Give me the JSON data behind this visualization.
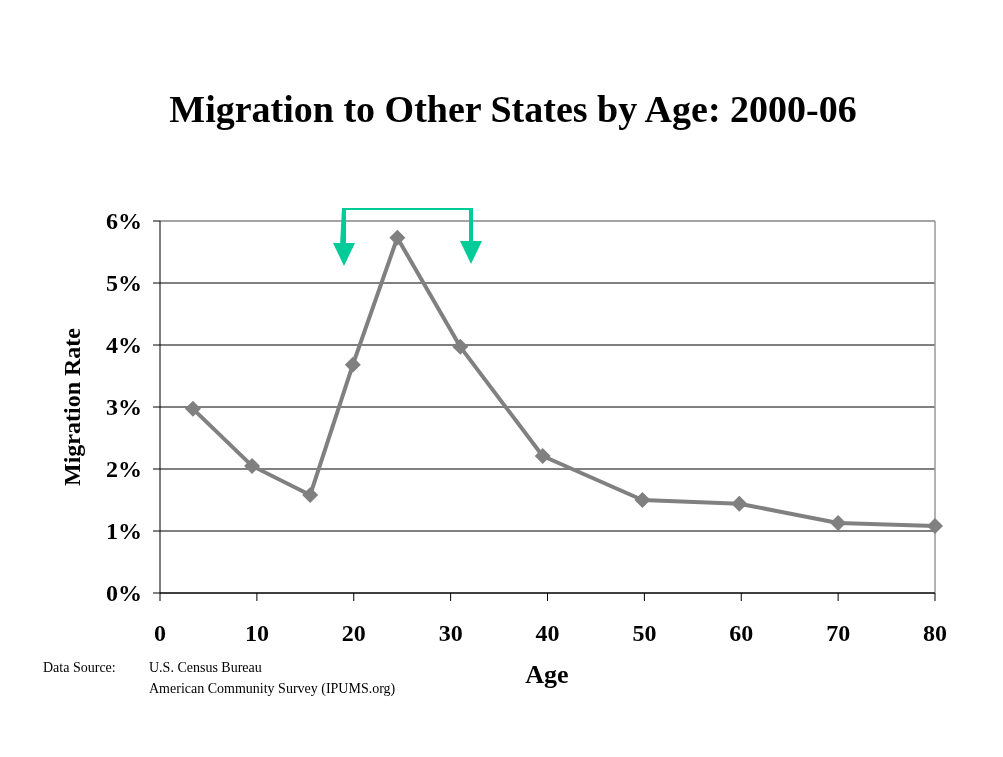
{
  "chart_data": {
    "type": "line",
    "title": "Migration to Other States by Age: 2000-06",
    "xlabel": "Age",
    "ylabel": "Migration Rate",
    "annotations": [
      "Data Source:",
      "U.S. Census Bureau",
      "American Community Survey (IPUMS.org)"
    ],
    "series": [
      {
        "color": "#808080",
        "x": [
          3.4,
          9.5,
          15.5,
          19.9,
          24.5,
          31,
          39.5,
          49.8,
          59.8,
          70,
          80
        ],
        "values": [
          2.97,
          2.05,
          1.58,
          3.68,
          5.73,
          3.97,
          2.21,
          1.5,
          1.44,
          1.13,
          1.08
        ]
      }
    ],
    "xlim": [
      0,
      80
    ],
    "xticks": [
      0,
      10,
      20,
      30,
      40,
      50,
      60,
      70,
      80
    ],
    "ylim": [
      0,
      6
    ],
    "yticks": [
      {
        "value": 0,
        "label": "0%"
      },
      {
        "value": 1,
        "label": "1%"
      },
      {
        "value": 2,
        "label": "2%"
      },
      {
        "value": 3,
        "label": "3%"
      },
      {
        "value": 4,
        "label": "4%"
      },
      {
        "value": 5,
        "label": "5%"
      },
      {
        "value": 6,
        "label": "6%"
      }
    ],
    "grid": "y",
    "marker": "diamond",
    "line_style": "solid"
  }
}
